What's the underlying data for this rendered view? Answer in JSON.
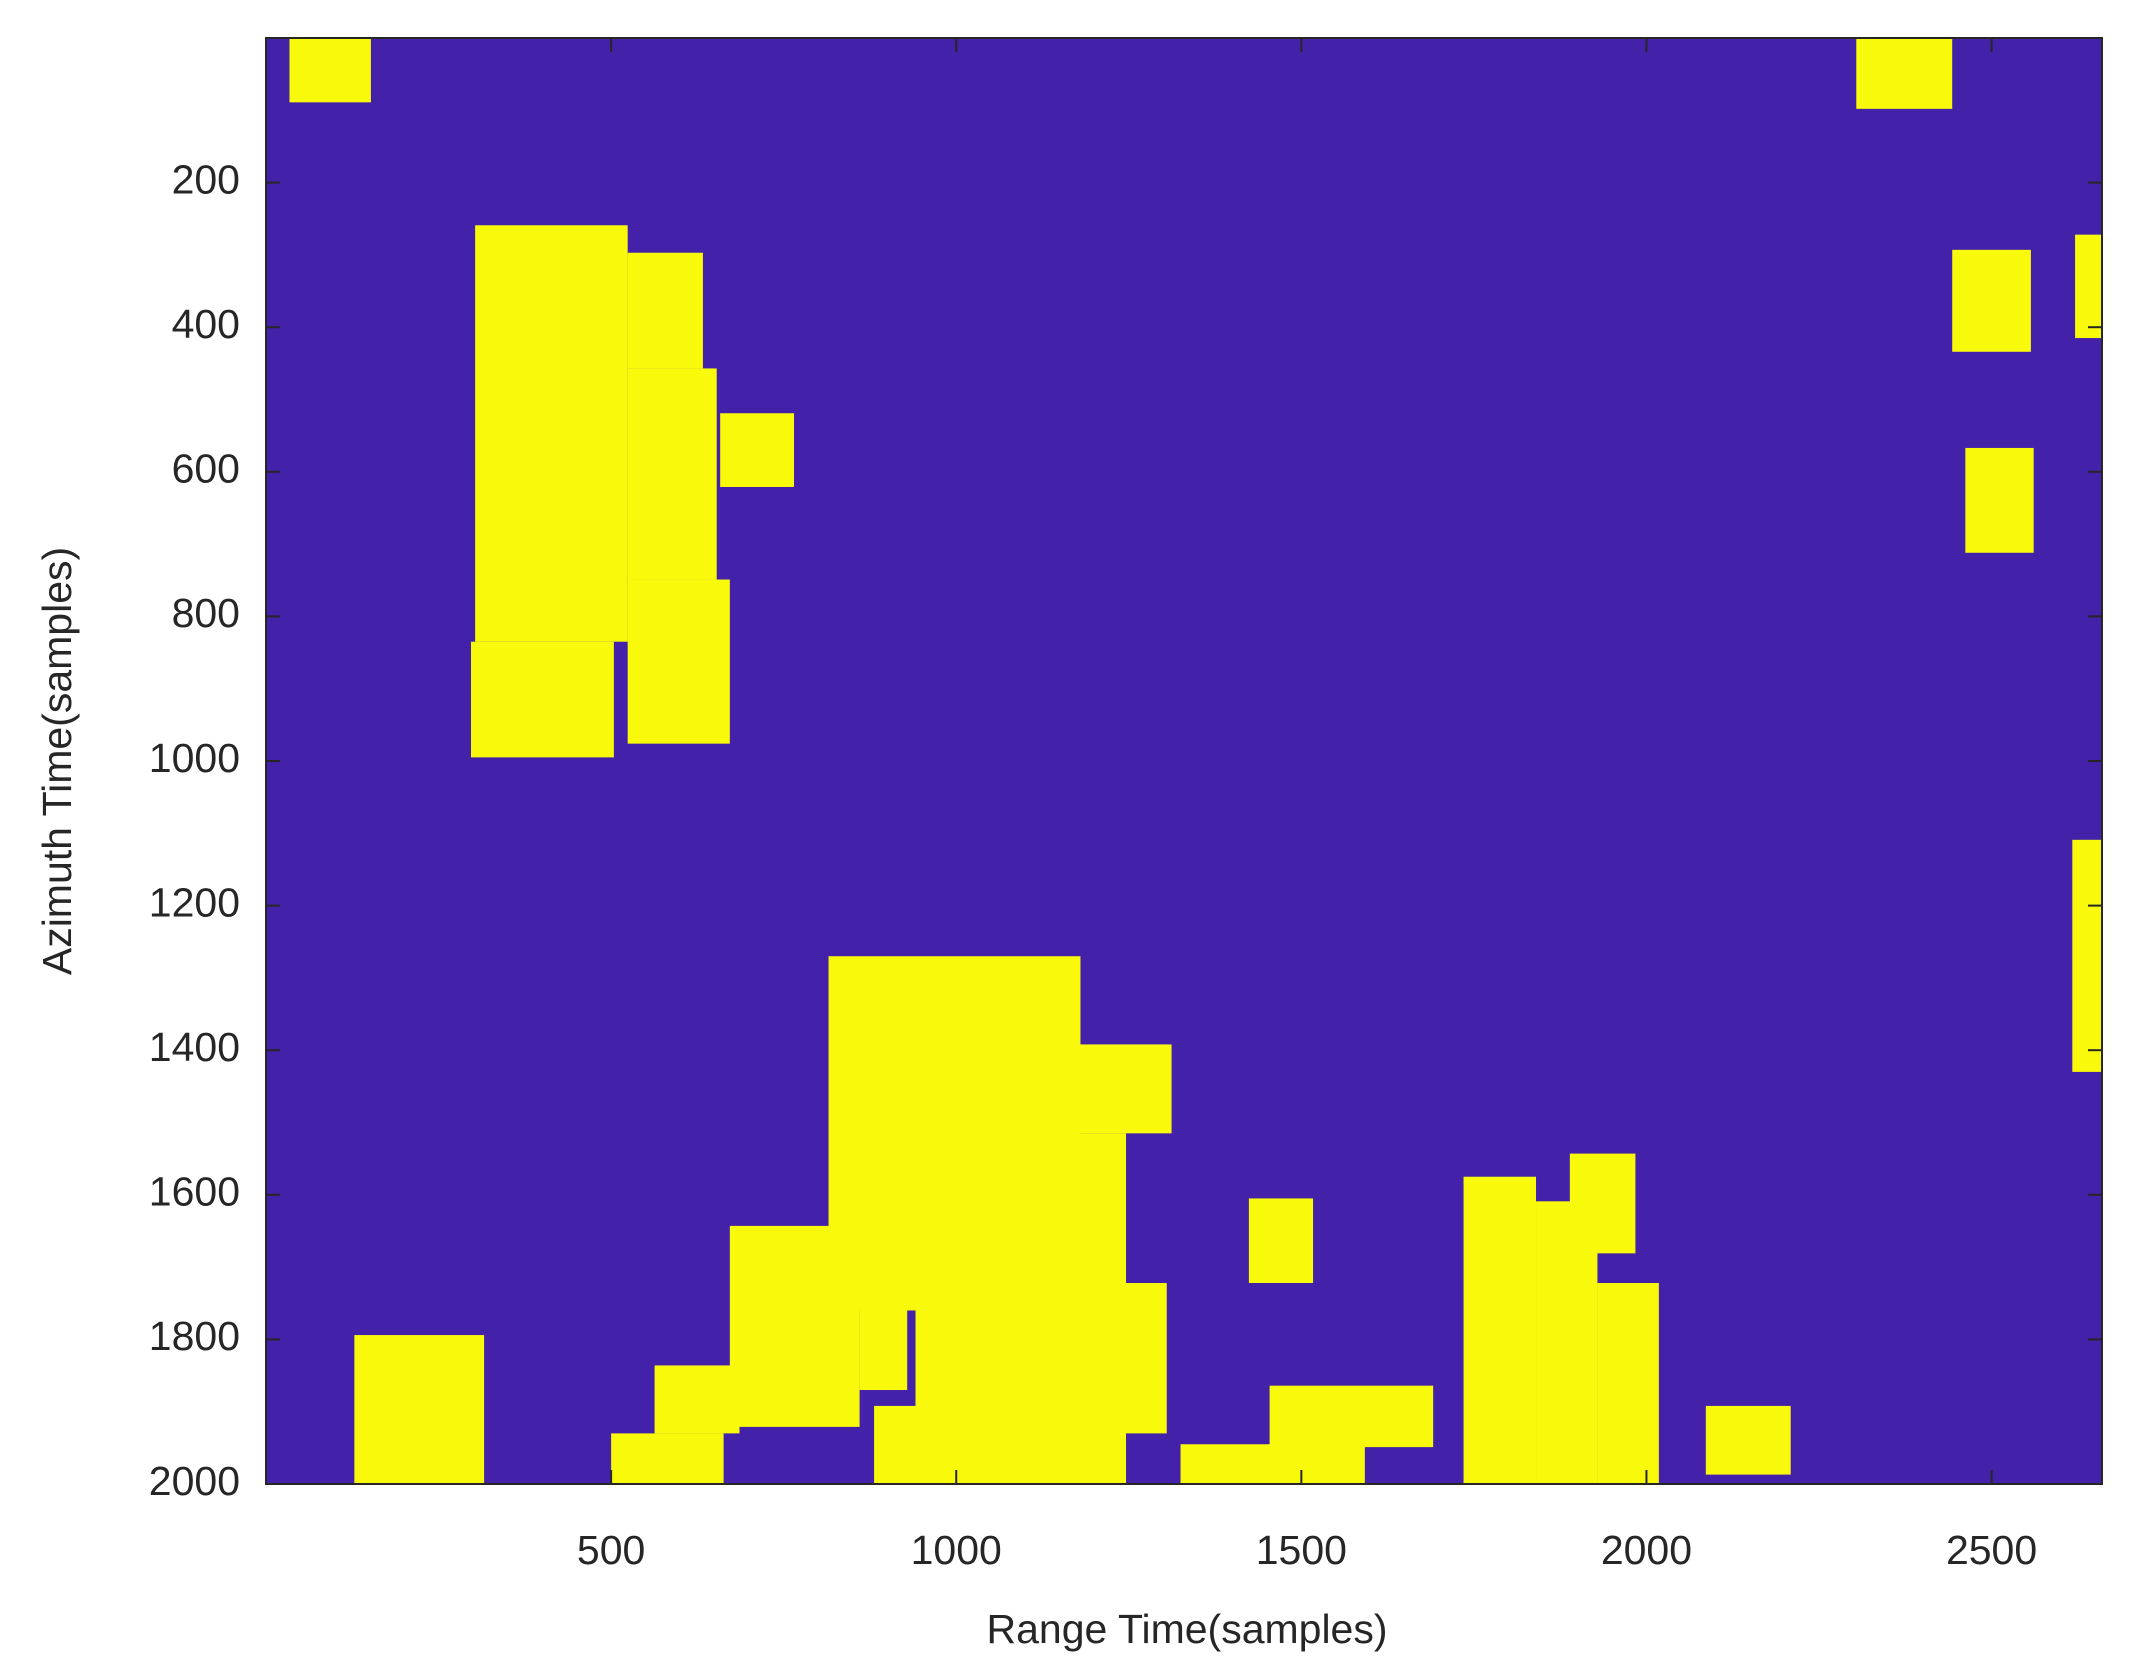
{
  "chart_data": {
    "type": "image",
    "xlabel": "Range Time(samples)",
    "ylabel": "Azimuth Time(samples)",
    "xlim": [
      0,
      2660
    ],
    "ylim": [
      0,
      2000
    ],
    "ydir": "reverse",
    "xticks": [
      500,
      1000,
      1500,
      2000,
      2500
    ],
    "yticks": [
      200,
      400,
      600,
      800,
      1000,
      1200,
      1400,
      1600,
      1800,
      2000
    ],
    "background_color": "#4321a9",
    "color": "#f9f90b",
    "regions": [
      {
        "x": [
          34,
          152
        ],
        "y": [
          0,
          89
        ]
      },
      {
        "x": [
          2304,
          2443
        ],
        "y": [
          0,
          98
        ]
      },
      {
        "x": [
          303,
          524
        ],
        "y": [
          259,
          835
        ]
      },
      {
        "x": [
          524,
          633
        ],
        "y": [
          297,
          457
        ]
      },
      {
        "x": [
          524,
          653
        ],
        "y": [
          457,
          749
        ]
      },
      {
        "x": [
          524,
          672
        ],
        "y": [
          749,
          976
        ]
      },
      {
        "x": [
          297,
          504
        ],
        "y": [
          835,
          995
        ]
      },
      {
        "x": [
          658,
          765
        ],
        "y": [
          519,
          621
        ]
      },
      {
        "x": [
          2443,
          2557
        ],
        "y": [
          293,
          434
        ]
      },
      {
        "x": [
          2621,
          2660
        ],
        "y": [
          272,
          415
        ]
      },
      {
        "x": [
          2462,
          2561
        ],
        "y": [
          567,
          712
        ]
      },
      {
        "x": [
          2617,
          2660
        ],
        "y": [
          1109,
          1430
        ]
      },
      {
        "x": [
          815,
          1180
        ],
        "y": [
          1270,
          1760
        ]
      },
      {
        "x": [
          1177,
          1312
        ],
        "y": [
          1392,
          1515
        ]
      },
      {
        "x": [
          1177,
          1246
        ],
        "y": [
          1515,
          1760
        ]
      },
      {
        "x": [
          941,
          1305
        ],
        "y": [
          1722,
          1930
        ]
      },
      {
        "x": [
          881,
          1246
        ],
        "y": [
          1892,
          2000
        ]
      },
      {
        "x": [
          672,
          860
        ],
        "y": [
          1643,
          1921
        ]
      },
      {
        "x": [
          860,
          929
        ],
        "y": [
          1713,
          1870
        ]
      },
      {
        "x": [
          128,
          316
        ],
        "y": [
          1794,
          2000
        ]
      },
      {
        "x": [
          500,
          663
        ],
        "y": [
          1930,
          2000
        ]
      },
      {
        "x": [
          563,
          686
        ],
        "y": [
          1836,
          1930
        ]
      },
      {
        "x": [
          1424,
          1517
        ],
        "y": [
          1605,
          1722
        ]
      },
      {
        "x": [
          1735,
          1840
        ],
        "y": [
          1575,
          2000
        ]
      },
      {
        "x": [
          1840,
          1929
        ],
        "y": [
          1609,
          2000
        ]
      },
      {
        "x": [
          1889,
          1984
        ],
        "y": [
          1543,
          1681
        ]
      },
      {
        "x": [
          1929,
          2018
        ],
        "y": [
          1722,
          2000
        ]
      },
      {
        "x": [
          2086,
          2209
        ],
        "y": [
          1892,
          1987
        ]
      },
      {
        "x": [
          1325,
          1592
        ],
        "y": [
          1945,
          2000
        ]
      },
      {
        "x": [
          1454,
          1691
        ],
        "y": [
          1864,
          1949
        ]
      }
    ]
  }
}
